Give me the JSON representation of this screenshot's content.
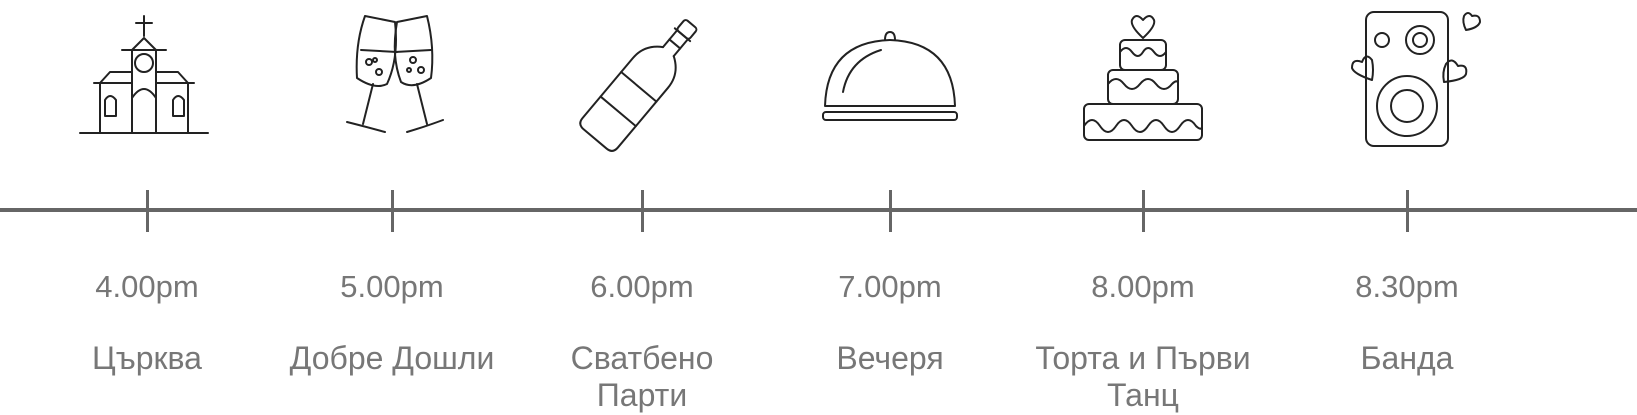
{
  "events": [
    {
      "time": "4.00pm",
      "label": "Църква",
      "icon": "church-icon"
    },
    {
      "time": "5.00pm",
      "label": "Добре Дошли",
      "icon": "champagne-glasses-icon"
    },
    {
      "time": "6.00pm",
      "label": "Сватбено Парти",
      "icon": "champagne-bottle-icon"
    },
    {
      "time": "7.00pm",
      "label": "Вечеря",
      "icon": "serving-cloche-icon"
    },
    {
      "time": "8.00pm",
      "label": "Торта и Първи Танц",
      "icon": "wedding-cake-icon"
    },
    {
      "time": "8.30pm",
      "label": "Банда",
      "icon": "speaker-icon"
    }
  ],
  "colors": {
    "line": "#666666",
    "text": "#777777",
    "icon_stroke": "#222222"
  }
}
